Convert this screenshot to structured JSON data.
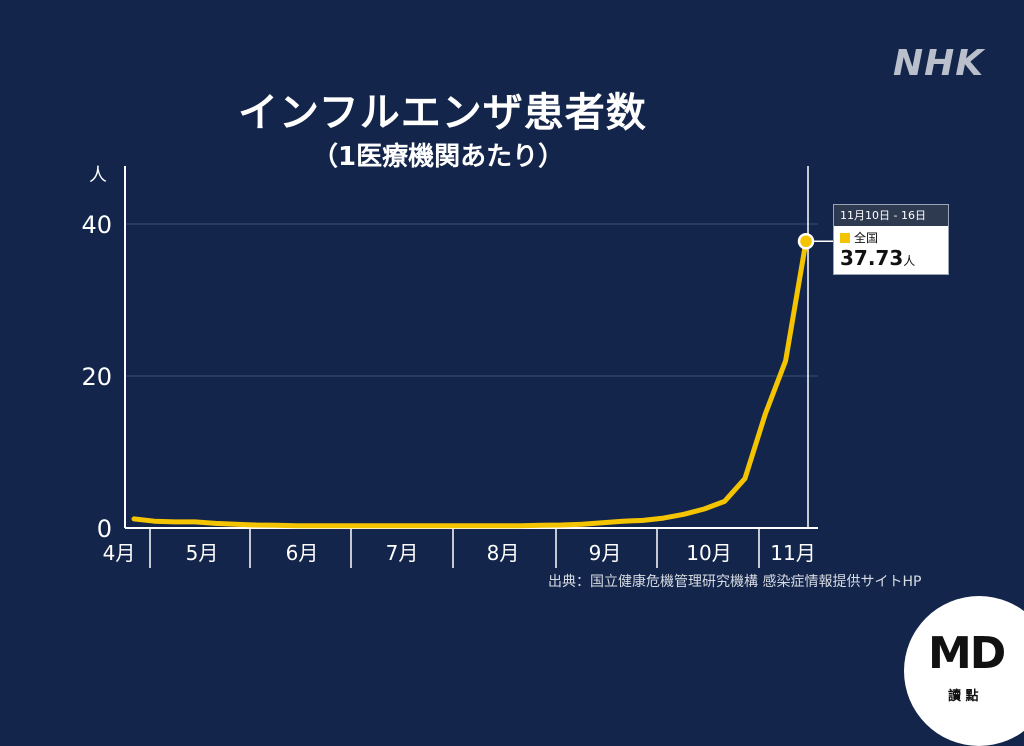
{
  "brand": "NHK",
  "source": "出典：国立健康危機管理研究機構 感染症情報提供サイトHP",
  "badge": {
    "logo": "MD",
    "sub": "讀 點"
  },
  "chart_data": {
    "type": "line",
    "title": "インフルエンザ患者数",
    "subtitle": "（1医療機関あたり）",
    "ylabel": "人",
    "xlabel": "",
    "ylim": [
      0,
      45
    ],
    "yticks": [
      0,
      20,
      40
    ],
    "month_labels": [
      "4月",
      "5月",
      "6月",
      "7月",
      "8月",
      "9月",
      "10月",
      "11月"
    ],
    "grid": true,
    "series": [
      {
        "name": "全国",
        "color": "#f5c400",
        "values": [
          1.2,
          0.9,
          0.8,
          0.8,
          0.6,
          0.5,
          0.4,
          0.35,
          0.3,
          0.3,
          0.3,
          0.3,
          0.3,
          0.3,
          0.3,
          0.3,
          0.3,
          0.3,
          0.3,
          0.3,
          0.35,
          0.4,
          0.5,
          0.7,
          0.9,
          1.0,
          1.3,
          1.8,
          2.5,
          3.5,
          6.5,
          15.0,
          22.0,
          37.73
        ]
      }
    ],
    "callout": {
      "period": "11月10日 - 16日",
      "series": "全国",
      "value": "37.73",
      "unit": "人"
    }
  }
}
